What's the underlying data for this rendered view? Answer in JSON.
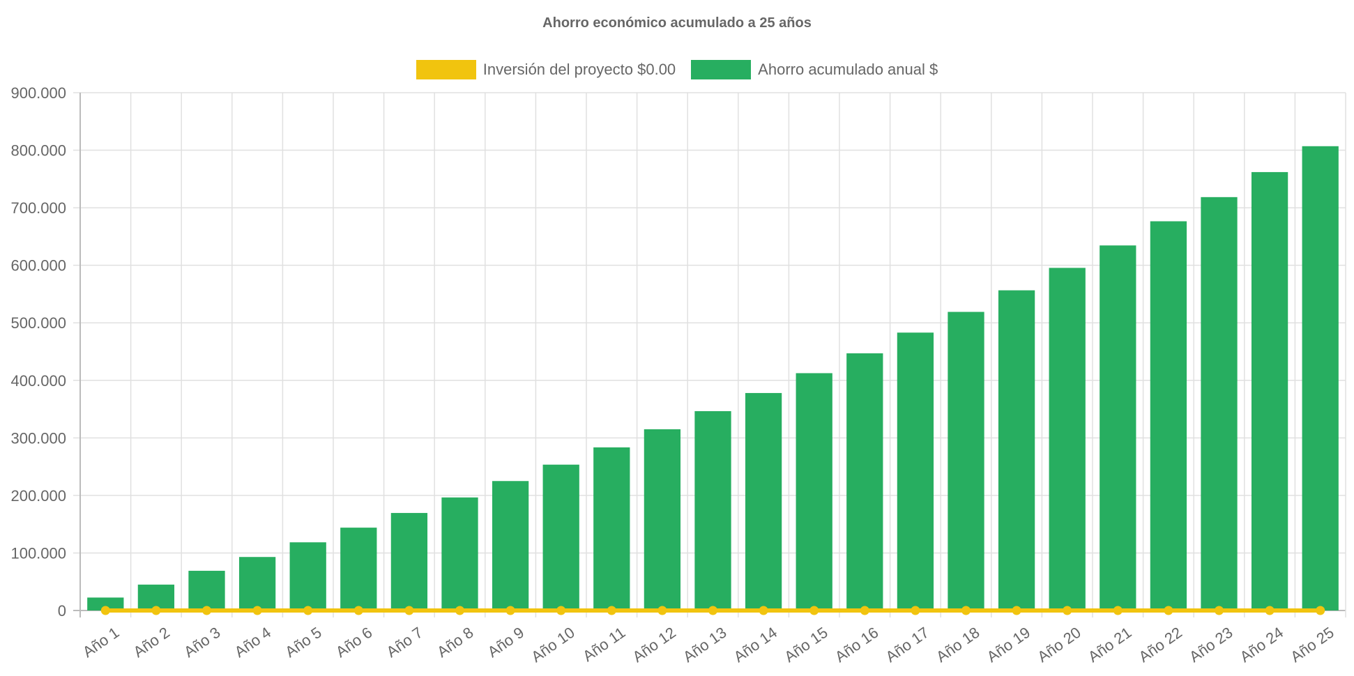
{
  "chart_data": {
    "type": "bar",
    "title": "Ahorro económico acumulado a 25 años",
    "categories": [
      "Año 1",
      "Año 2",
      "Año 3",
      "Año 4",
      "Año 5",
      "Año 6",
      "Año 7",
      "Año 8",
      "Año 9",
      "Año 10",
      "Año 11",
      "Año 12",
      "Año 13",
      "Año 14",
      "Año 15",
      "Año 16",
      "Año 17",
      "Año 18",
      "Año 19",
      "Año 20",
      "Año 21",
      "Año 22",
      "Año 23",
      "Año 24",
      "Año 25"
    ],
    "series": [
      {
        "name": "Inversión del proyecto $0.00",
        "type": "line",
        "color": "#f1c40f",
        "values": [
          0,
          0,
          0,
          0,
          0,
          0,
          0,
          0,
          0,
          0,
          0,
          0,
          0,
          0,
          0,
          0,
          0,
          0,
          0,
          0,
          0,
          0,
          0,
          0,
          0
        ]
      },
      {
        "name": "Ahorro acumulado anual $",
        "type": "bar",
        "color": "#27ae60",
        "values": [
          22500,
          45000,
          69000,
          93000,
          118500,
          144000,
          169500,
          196500,
          225000,
          253500,
          283500,
          315000,
          346500,
          378000,
          412500,
          447000,
          483000,
          519000,
          556500,
          595500,
          634500,
          676500,
          718500,
          762000,
          807000
        ]
      }
    ],
    "ylim": [
      0,
      900000
    ],
    "yticks": [
      "0",
      "100.000",
      "200.000",
      "300.000",
      "400.000",
      "500.000",
      "600.000",
      "700.000",
      "800.000",
      "900.000"
    ],
    "xlabel": "",
    "ylabel": "",
    "grid": true,
    "legend": "top"
  }
}
